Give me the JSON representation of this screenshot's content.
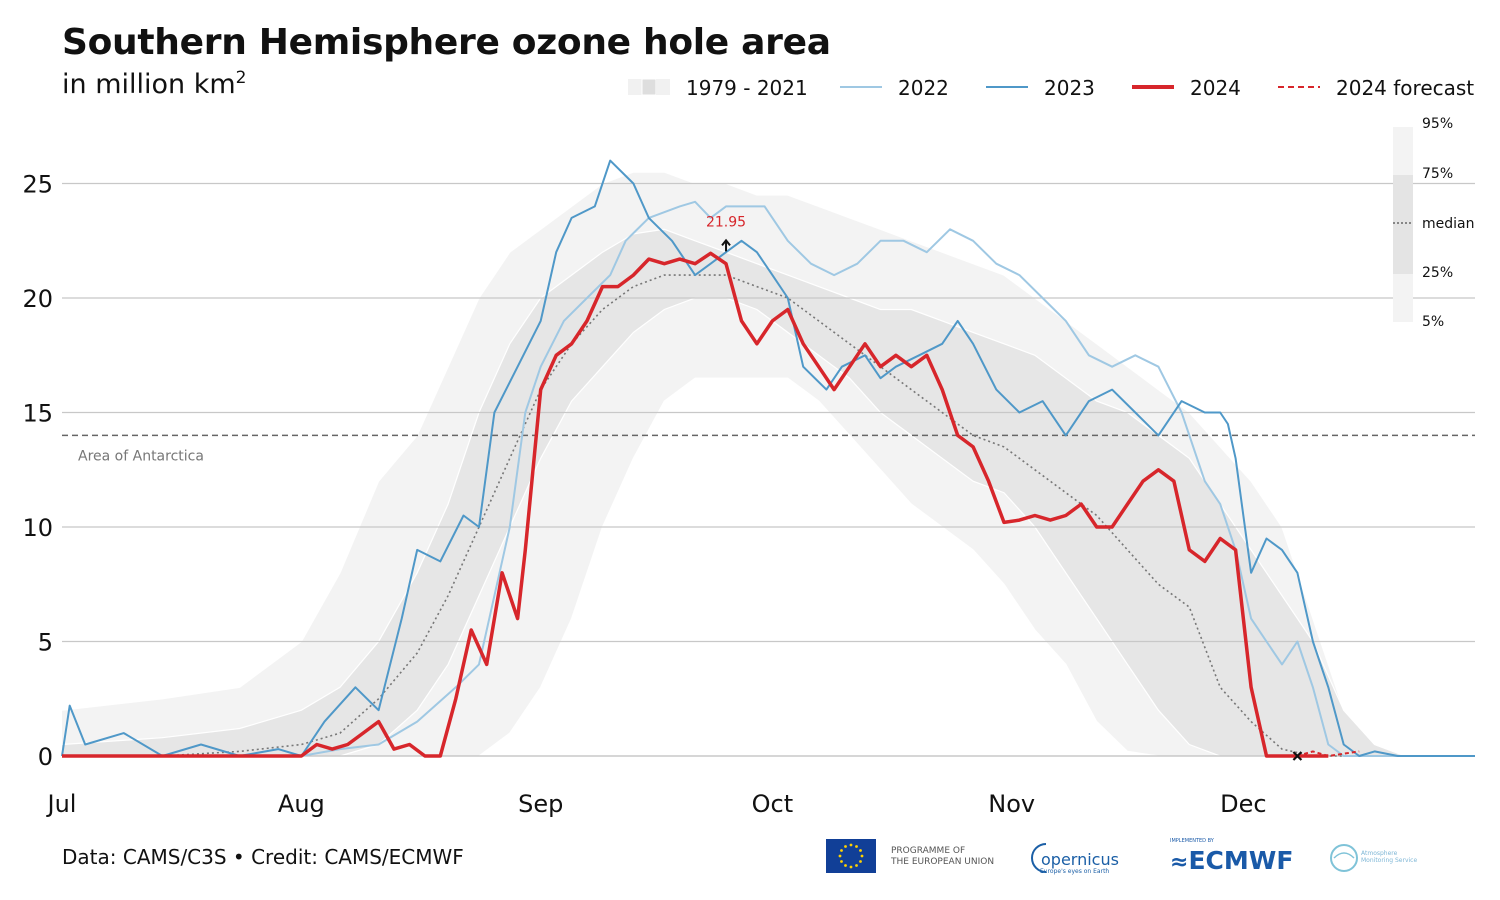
{
  "header": {
    "title": "Southern Hemisphere ozone hole area",
    "subtitle": "in million km",
    "subtitle_sup": "2"
  },
  "legend": {
    "items": [
      {
        "label": "1979 - 2021",
        "kind": "band"
      },
      {
        "label": "2022",
        "kind": "line",
        "color": "#9fc8e3"
      },
      {
        "label": "2023",
        "kind": "line",
        "color": "#4f98c8"
      },
      {
        "label": "2024",
        "kind": "line-bold",
        "color": "#d7262b"
      },
      {
        "label": "2024 forecast",
        "kind": "dashed",
        "color": "#d7262b"
      }
    ],
    "percentiles": [
      "95%",
      "75%",
      "median",
      "25%",
      "5%"
    ]
  },
  "footer": {
    "source": "Data: CAMS/C3S • Credit: CAMS/ECMWF",
    "eu_line1": "PROGRAMME OF",
    "eu_line2": "THE EUROPEAN UNION",
    "copernicus": "opernicus",
    "copernicus_sub": "Europe's eyes on Earth",
    "ecmwf": "ECMWF",
    "ecmwf_small": "IMPLEMENTED BY",
    "cams_line1": "Atmosphere",
    "cams_line2": "Monitoring Service"
  },
  "colors": {
    "y2022": "#9fc8e3",
    "y2023": "#4f98c8",
    "y2024": "#d7262b",
    "band_outer": "#f3f3f3",
    "band_inner": "#e6e6e6",
    "median": "#777777",
    "grid": "#c8c8c8"
  },
  "chart_data": {
    "type": "line",
    "title": "Southern Hemisphere ozone hole area",
    "ylabel": "in million km2",
    "x_unit": "day of year",
    "xlim": [
      182,
      365
    ],
    "ylim": [
      -1,
      27
    ],
    "yticks": [
      0,
      5,
      10,
      15,
      20,
      25
    ],
    "x_ticks": [
      {
        "label": "Jul",
        "day": 182
      },
      {
        "label": "Aug",
        "day": 213
      },
      {
        "label": "Sep",
        "day": 244
      },
      {
        "label": "Oct",
        "day": 274
      },
      {
        "label": "Nov",
        "day": 305
      },
      {
        "label": "Dec",
        "day": 335
      }
    ],
    "reference_line": {
      "label": "Area of Antarctica",
      "y": 14
    },
    "annotation": {
      "label": "21.95",
      "day": 268,
      "y": 21.95
    },
    "climatology_1979_2021": {
      "days": [
        182,
        195,
        205,
        213,
        218,
        223,
        228,
        232,
        236,
        240,
        244,
        248,
        252,
        256,
        260,
        264,
        268,
        272,
        276,
        280,
        284,
        288,
        292,
        296,
        300,
        304,
        308,
        312,
        316,
        320,
        324,
        328,
        332,
        336,
        340,
        344,
        348,
        352,
        356,
        360,
        365
      ],
      "p95": [
        2,
        2.5,
        3,
        5,
        8,
        12,
        14,
        17,
        20,
        22,
        23,
        24,
        25,
        25.5,
        25.5,
        25,
        25,
        24.5,
        24.5,
        24,
        23.5,
        23,
        22.5,
        22,
        21.5,
        21,
        20,
        19,
        18,
        17,
        16,
        15,
        13.5,
        12,
        10,
        6,
        2,
        0.5,
        0,
        0,
        0
      ],
      "p75": [
        0.5,
        0.8,
        1.2,
        2,
        3,
        5,
        8,
        11,
        15,
        18,
        20,
        21,
        22,
        22.8,
        23,
        22.5,
        22,
        21.5,
        21,
        20.5,
        20,
        19.5,
        19.5,
        19,
        18.5,
        18,
        17.5,
        16.5,
        15.5,
        15,
        14,
        13,
        11,
        9,
        7,
        5,
        2,
        0.5,
        0,
        0,
        0
      ],
      "median": [
        0,
        0,
        0.2,
        0.5,
        1,
        2.5,
        4.5,
        7,
        10,
        13,
        16,
        18,
        19.5,
        20.5,
        21,
        21,
        21,
        20.5,
        20,
        19,
        18,
        17,
        16,
        15,
        14,
        13.5,
        12.5,
        11.5,
        10.5,
        9,
        7.5,
        6.5,
        3,
        1.5,
        0.3,
        0,
        0,
        0,
        0,
        0,
        0
      ],
      "p25": [
        0,
        0,
        0,
        0,
        0,
        0.5,
        2,
        4,
        7,
        10,
        13,
        15.5,
        17,
        18.5,
        19.5,
        20,
        20,
        19.5,
        18.5,
        17.5,
        16.5,
        15,
        14,
        13,
        12,
        11.5,
        10,
        8,
        6,
        4,
        2,
        0.5,
        0,
        0,
        0,
        0,
        0,
        0,
        0,
        0,
        0
      ],
      "p5": [
        0,
        0,
        0,
        0,
        0,
        0,
        0,
        0,
        0,
        1,
        3,
        6,
        10,
        13,
        15.5,
        16.5,
        16.5,
        16.5,
        16.5,
        15.5,
        14,
        12.5,
        11,
        10,
        9,
        7.5,
        5.5,
        4,
        1.5,
        0.2,
        0,
        0,
        0,
        0,
        0,
        0,
        0,
        0,
        0,
        0,
        0
      ]
    },
    "series": [
      {
        "name": "2022",
        "days": [
          182,
          200,
          213,
          218,
          223,
          228,
          233,
          236,
          238,
          240,
          242,
          244,
          247,
          250,
          253,
          255,
          258,
          262,
          264,
          266,
          268,
          270,
          273,
          276,
          279,
          282,
          285,
          288,
          291,
          294,
          297,
          300,
          303,
          306,
          309,
          312,
          315,
          318,
          321,
          324,
          327,
          330,
          332,
          334,
          336,
          338,
          340,
          342,
          344,
          346,
          348,
          350,
          365
        ],
        "values": [
          0,
          0,
          0,
          0.3,
          0.5,
          1.5,
          3,
          4,
          7,
          10,
          15,
          17,
          19,
          20,
          21,
          22.5,
          23.5,
          24,
          24.2,
          23.5,
          24,
          24,
          24,
          22.5,
          21.5,
          21,
          21.5,
          22.5,
          22.5,
          22,
          23,
          22.5,
          21.5,
          21,
          20,
          19,
          17.5,
          17,
          17.5,
          17,
          15,
          12,
          11,
          9,
          6,
          5,
          4,
          5,
          3,
          0.5,
          0,
          0,
          0
        ]
      },
      {
        "name": "2023",
        "days": [
          182,
          183,
          185,
          190,
          195,
          200,
          205,
          210,
          213,
          216,
          220,
          223,
          226,
          228,
          231,
          234,
          236,
          238,
          241,
          244,
          246,
          248,
          251,
          253,
          256,
          258,
          261,
          264,
          266,
          268,
          270,
          272,
          274,
          276,
          278,
          281,
          283,
          286,
          288,
          290,
          293,
          296,
          298,
          300,
          303,
          306,
          309,
          312,
          315,
          318,
          321,
          324,
          327,
          330,
          332,
          333,
          334,
          336,
          338,
          340,
          342,
          344,
          346,
          348,
          350,
          352,
          355,
          365
        ],
        "values": [
          0,
          2.2,
          0.5,
          1,
          0,
          0.5,
          0,
          0.3,
          0,
          1.5,
          3,
          2,
          6,
          9,
          8.5,
          10.5,
          10,
          15,
          17,
          19,
          22,
          23.5,
          24,
          26,
          25,
          23.5,
          22.5,
          21,
          21.5,
          22,
          22.5,
          22,
          21,
          20,
          17,
          16,
          17,
          17.5,
          16.5,
          17,
          17.5,
          18,
          19,
          18,
          16,
          15,
          15.5,
          14,
          15.5,
          16,
          15,
          14,
          15.5,
          15,
          15,
          14.5,
          13,
          8,
          9.5,
          9,
          8,
          5,
          3,
          0.5,
          0,
          0.2,
          0,
          0
        ]
      },
      {
        "name": "2024",
        "days": [
          182,
          200,
          213,
          215,
          217,
          219,
          221,
          223,
          225,
          227,
          229,
          231,
          233,
          235,
          237,
          239,
          241,
          242,
          244,
          246,
          248,
          250,
          252,
          254,
          256,
          258,
          260,
          262,
          264,
          266,
          268,
          270,
          272,
          274,
          276,
          278,
          280,
          282,
          284,
          286,
          288,
          290,
          292,
          294,
          296,
          298,
          300,
          302,
          304,
          306,
          308,
          310,
          312,
          314,
          316,
          318,
          320,
          322,
          324,
          326,
          328,
          330,
          332,
          334,
          336,
          338,
          340,
          342,
          344,
          346
        ],
        "values": [
          0,
          0,
          0,
          0.5,
          0.3,
          0.5,
          1,
          1.5,
          0.3,
          0.5,
          0,
          0,
          2.5,
          5.5,
          4,
          8,
          6,
          9,
          16,
          17.5,
          18,
          19,
          20.5,
          20.5,
          21,
          21.7,
          21.5,
          21.7,
          21.5,
          21.95,
          21.5,
          19,
          18,
          19,
          19.5,
          18,
          17,
          16,
          17,
          18,
          17,
          17.5,
          17,
          17.5,
          16,
          14,
          13.5,
          12,
          10.2,
          10.3,
          10.5,
          10.3,
          10.5,
          11,
          10,
          10,
          11,
          12,
          12.5,
          12,
          9,
          8.5,
          9.5,
          9,
          3,
          0,
          0,
          0,
          0,
          0
        ]
      },
      {
        "name": "2024 forecast",
        "days": [
          342,
          344,
          346,
          348,
          350
        ],
        "values": [
          0,
          0.2,
          0,
          0.1,
          0.2
        ]
      }
    ]
  }
}
